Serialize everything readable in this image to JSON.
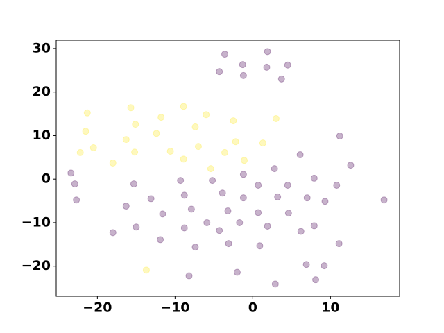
{
  "chart_data": {
    "type": "scatter",
    "xlim": [
      -25.3,
      18.9
    ],
    "ylim": [
      -26.9,
      31.9
    ],
    "xticks": [
      {
        "value": -20,
        "label": "−20"
      },
      {
        "value": -10,
        "label": "−10"
      },
      0,
      10
    ],
    "yticks": [
      {
        "value": -20,
        "label": "−20"
      },
      {
        "value": -10,
        "label": "−10"
      },
      0,
      10,
      20,
      30
    ],
    "alpha": 0.3,
    "series": [
      {
        "color": "#fde725",
        "x": [
          -21.3,
          -15.7,
          -21.5,
          -15.1,
          -22.2,
          -20.5,
          -16.3,
          -18.0,
          -15.2,
          -11.8,
          -12.4,
          -8.9,
          -6.0,
          -7.4,
          -2.5,
          -7.0,
          -10.6,
          -8.9,
          -3.6,
          -2.2,
          -1.1,
          -5.4,
          1.3,
          3.0,
          -13.7
        ],
        "values": [
          15.2,
          16.4,
          11.0,
          12.6,
          6.1,
          7.2,
          9.1,
          3.7,
          6.2,
          14.2,
          10.5,
          16.7,
          14.8,
          12.0,
          13.4,
          7.5,
          6.4,
          4.6,
          6.1,
          8.6,
          4.3,
          2.4,
          8.3,
          13.9,
          -20.9
        ]
      },
      {
        "color": "#440154",
        "x": [
          -3.6,
          1.9,
          -1.3,
          4.5,
          -4.3,
          1.8,
          -1.2,
          3.7,
          11.2,
          6.1,
          12.6,
          -23.4,
          -22.9,
          -22.7,
          -15.3,
          -9.3,
          -5.2,
          -1.2,
          2.8,
          0.7,
          4.5,
          7.9,
          10.8,
          16.9,
          -8.8,
          -3.9,
          -1.2,
          3.2,
          7.0,
          9.3,
          -13.1,
          -16.3,
          -7.9,
          -11.6,
          -3.2,
          0.7,
          4.6,
          -5.9,
          -1.7,
          -15.0,
          -8.8,
          -4.3,
          1.9,
          6.2,
          7.9,
          -18.0,
          -11.9,
          -3.1,
          0.9,
          11.1,
          -7.4,
          6.9,
          9.2,
          -2.0,
          -8.2,
          8.1,
          2.9
        ],
        "values": [
          28.7,
          29.3,
          26.3,
          26.2,
          24.7,
          25.7,
          23.8,
          23.0,
          9.9,
          5.6,
          3.2,
          1.4,
          -1.1,
          -4.8,
          -1.1,
          -0.3,
          -0.3,
          1.1,
          2.4,
          -1.4,
          -1.4,
          0.2,
          -1.4,
          -4.8,
          -3.7,
          -3.2,
          -4.3,
          -4.1,
          -4.3,
          -5.1,
          -4.5,
          -6.2,
          -6.9,
          -8.0,
          -7.3,
          -7.7,
          -7.8,
          -10.0,
          -10.0,
          -11.0,
          -11.2,
          -11.8,
          -10.8,
          -12.0,
          -10.7,
          -12.3,
          -13.9,
          -14.8,
          -15.3,
          -14.8,
          -15.6,
          -19.6,
          -19.9,
          -21.4,
          -22.2,
          -23.1,
          -24.1
        ]
      }
    ]
  }
}
